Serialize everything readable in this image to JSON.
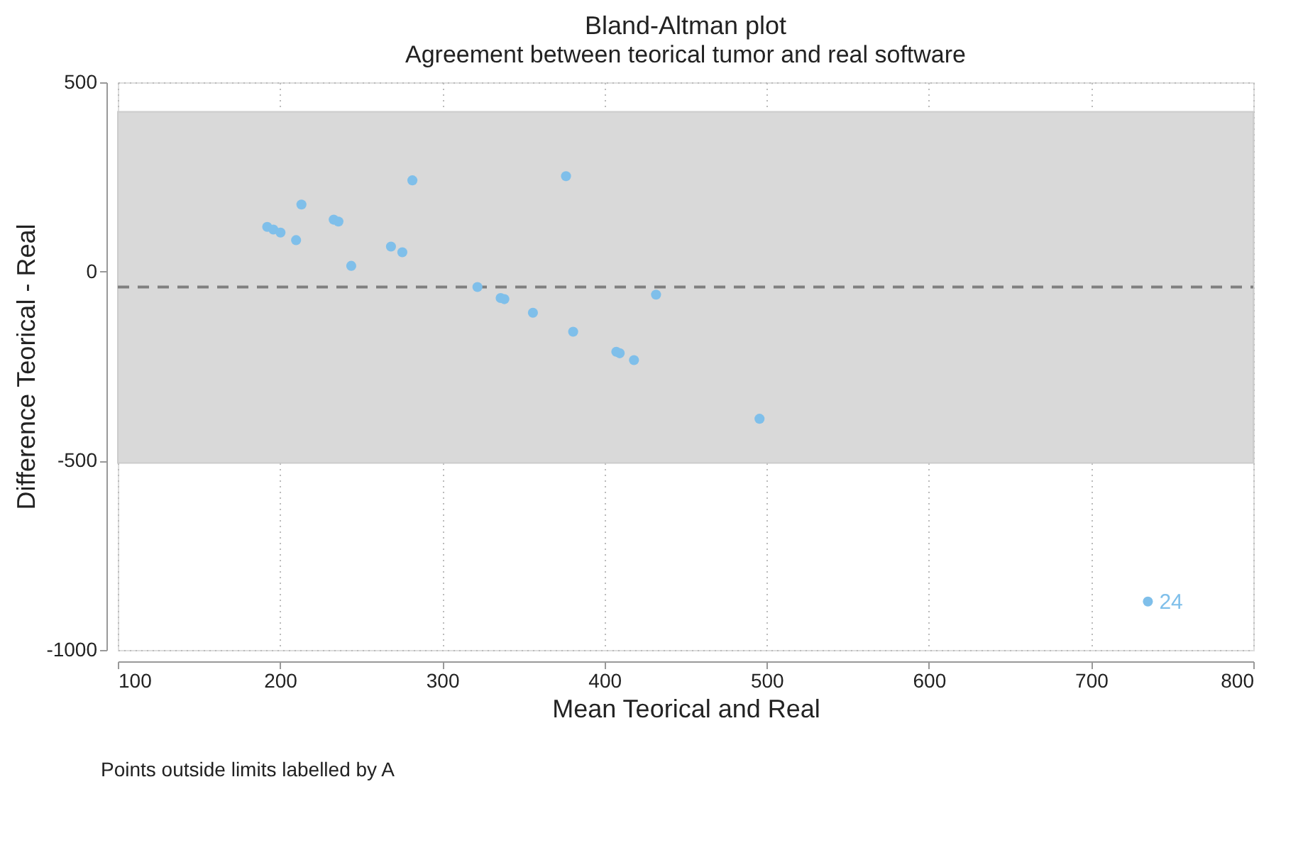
{
  "chart_data": {
    "type": "scatter",
    "title": "Bland-Altman plot",
    "subtitle": "Agreement between teorical tumor and real software",
    "xlabel": "Mean Teorical and Real",
    "ylabel": "Difference Teorical - Real",
    "xlim": [
      100,
      800
    ],
    "xticks": [
      100,
      200,
      300,
      400,
      500,
      600,
      700,
      800
    ],
    "ylim": [
      -1000,
      500
    ],
    "yticks": [
      -1000,
      -500,
      0,
      500
    ],
    "grid": true,
    "marker": "circle",
    "series": [
      {
        "color": "#7fbfea",
        "x": [
          192.1,
          195.9,
          200.3,
          209.9,
          213.2,
          233.1,
          236,
          243.9,
          268.4,
          275.4,
          281.6,
          321.7,
          336,
          338.3,
          355.9,
          376.3,
          380.7,
          407.3,
          409.4,
          418.2,
          431.8,
          495.6,
          735
        ],
        "values": [
          118,
          111,
          103,
          83,
          177,
          137,
          132,
          15,
          66,
          51,
          241,
          -41,
          -70,
          -73,
          -109,
          252,
          -159,
          -212,
          -216,
          -234,
          -61,
          -389,
          -872
        ]
      }
    ],
    "bands": [
      {
        "axis": "y",
        "from": -506,
        "to": 422,
        "color": "#d9d9d9"
      }
    ],
    "ref_lines": [
      {
        "axis": "y",
        "value": -41,
        "color": "#808080",
        "line_style": "dashed"
      }
    ],
    "annotations": [
      {
        "text": "24",
        "x": 735,
        "y": -872
      },
      "Points outside limits labelled by A"
    ]
  }
}
